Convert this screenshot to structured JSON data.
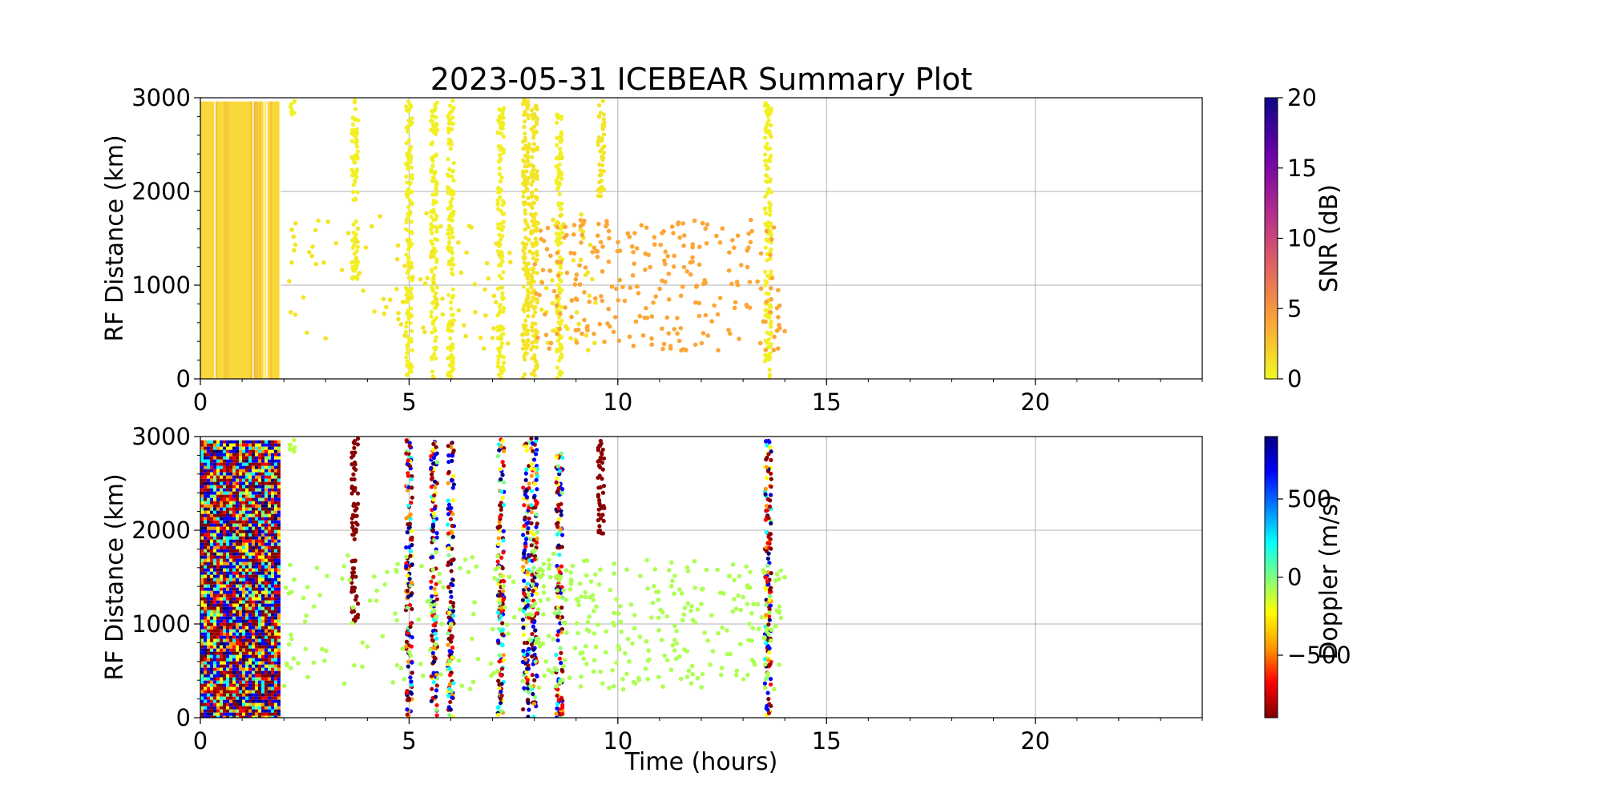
{
  "figure": {
    "title": "2023-05-31 ICEBEAR Summary Plot"
  },
  "chart_data": [
    {
      "type": "scatter",
      "name": "snr-panel",
      "xlabel": "",
      "ylabel": "RF Distance (km)",
      "xlim": [
        0,
        24
      ],
      "ylim": [
        0,
        3000
      ],
      "xticks": [
        0,
        5,
        10,
        15,
        20
      ],
      "yticks": [
        0,
        1000,
        2000,
        3000
      ],
      "grid": true,
      "colorbar": {
        "label": "SNR (dB)",
        "range": [
          0,
          20
        ],
        "ticks": [
          0,
          5,
          10,
          15,
          20
        ],
        "colormap": "plasma_r",
        "stops": [
          "#f0f921",
          "#fca636",
          "#e16462",
          "#b12a90",
          "#6a00a8",
          "#0d0887"
        ]
      },
      "dense_block": {
        "x_range": [
          0.0,
          1.9
        ],
        "y_range": [
          0,
          2960
        ],
        "color": "#f8d83a",
        "value": 0.5
      },
      "streaks": [
        {
          "x": 2.2,
          "y_range": [
            2800,
            2980
          ],
          "value": 0.5
        },
        {
          "x": 3.7,
          "y_range": [
            1900,
            2980
          ],
          "value": 0.5
        },
        {
          "x": 3.7,
          "y_range": [
            1000,
            1700
          ],
          "value": 0.5
        },
        {
          "x": 5.0,
          "y_range": [
            0,
            2980
          ],
          "value": 0.5
        },
        {
          "x": 5.6,
          "y_range": [
            0,
            2980
          ],
          "value": 0.5
        },
        {
          "x": 6.0,
          "y_range": [
            0,
            2980
          ],
          "value": 0.5
        },
        {
          "x": 7.2,
          "y_range": [
            0,
            2980
          ],
          "value": 0.5
        },
        {
          "x": 7.8,
          "y_range": [
            0,
            2980
          ],
          "value": 1
        },
        {
          "x": 8.0,
          "y_range": [
            0,
            2980
          ],
          "value": 1
        },
        {
          "x": 8.6,
          "y_range": [
            0,
            2850
          ],
          "value": 0.5
        },
        {
          "x": 9.6,
          "y_range": [
            1950,
            2980
          ],
          "value": 1
        },
        {
          "x": 13.6,
          "y_range": [
            0,
            2980
          ],
          "value": 0.5
        }
      ],
      "sparse_regions": [
        {
          "x_range": [
            2.0,
            9.5
          ],
          "y_range": [
            300,
            1800
          ],
          "count": 140,
          "value": 1
        },
        {
          "x_range": [
            8.0,
            14.0
          ],
          "y_range": [
            300,
            1700
          ],
          "count": 260,
          "value": 4
        }
      ]
    },
    {
      "type": "scatter",
      "name": "doppler-panel",
      "xlabel": "Time (hours)",
      "ylabel": "RF Distance (km)",
      "xlim": [
        0,
        24
      ],
      "ylim": [
        0,
        3000
      ],
      "xticks": [
        0,
        5,
        10,
        15,
        20
      ],
      "yticks": [
        0,
        1000,
        2000,
        3000
      ],
      "grid": true,
      "colorbar": {
        "label": "Doppler (m/s)",
        "range": [
          -900,
          900
        ],
        "ticks": [
          -500,
          0,
          500
        ],
        "tick_labels": [
          "−500",
          "0",
          "500"
        ],
        "colormap": "jet_r",
        "stops": [
          "#7f0000",
          "#ff0000",
          "#ff9900",
          "#ffff00",
          "#80ff80",
          "#00ffff",
          "#0080ff",
          "#0000ff",
          "#00007f"
        ]
      },
      "dense_block": {
        "x_range": [
          0.0,
          1.9
        ],
        "y_range": [
          0,
          2960
        ],
        "value": "mixed"
      },
      "streaks": [
        {
          "x": 2.2,
          "y_range": [
            2800,
            2980
          ],
          "value": -100
        },
        {
          "x": 3.7,
          "y_range": [
            1900,
            2980
          ],
          "value": -880
        },
        {
          "x": 3.7,
          "y_range": [
            1000,
            1700
          ],
          "value": -880
        },
        {
          "x": 5.0,
          "y_range": [
            0,
            2980
          ],
          "value": "mixed"
        },
        {
          "x": 5.6,
          "y_range": [
            0,
            2980
          ],
          "value": "mixed"
        },
        {
          "x": 6.0,
          "y_range": [
            0,
            2980
          ],
          "value": "mixed"
        },
        {
          "x": 7.2,
          "y_range": [
            0,
            2980
          ],
          "value": "mixed"
        },
        {
          "x": 7.8,
          "y_range": [
            0,
            2980
          ],
          "value": "mixed"
        },
        {
          "x": 8.0,
          "y_range": [
            0,
            2980
          ],
          "value": "mixed"
        },
        {
          "x": 8.6,
          "y_range": [
            0,
            2850
          ],
          "value": "mixed"
        },
        {
          "x": 9.6,
          "y_range": [
            1950,
            2980
          ],
          "value": -880
        },
        {
          "x": 13.6,
          "y_range": [
            0,
            2980
          ],
          "value": "mixed"
        }
      ],
      "sparse_regions": [
        {
          "x_range": [
            2.0,
            9.5
          ],
          "y_range": [
            300,
            1800
          ],
          "count": 140,
          "value": -80
        },
        {
          "x_range": [
            8.0,
            14.0
          ],
          "y_range": [
            300,
            1700
          ],
          "count": 260,
          "value": -80
        }
      ]
    }
  ]
}
